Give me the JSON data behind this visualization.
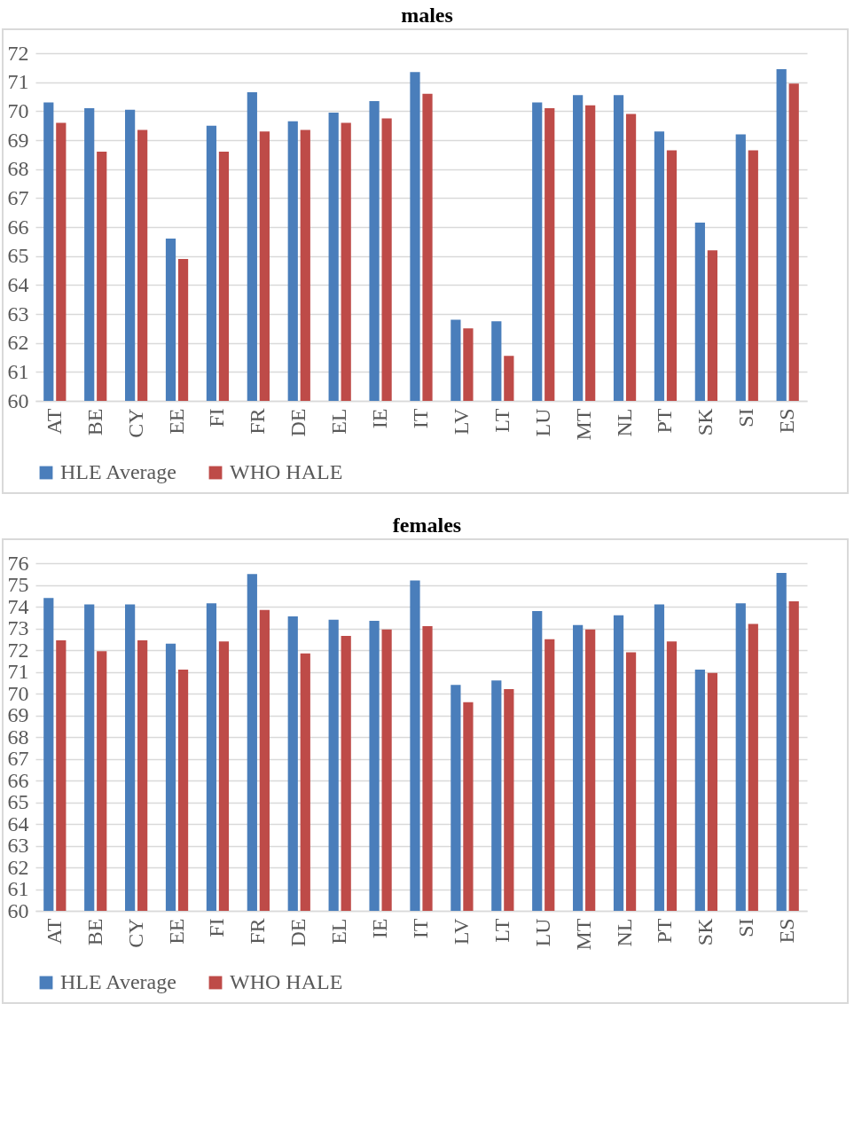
{
  "chart_data": [
    {
      "type": "bar",
      "title": "males",
      "categories": [
        "AT",
        "BE",
        "CY",
        "EE",
        "FI",
        "FR",
        "DE",
        "EL",
        "IE",
        "IT",
        "LV",
        "LT",
        "LU",
        "MT",
        "NL",
        "PT",
        "SK",
        "SI",
        "ES"
      ],
      "series": [
        {
          "name": "HLE Average",
          "color": "#4a7ebb",
          "values": [
            70.3,
            70.1,
            70.05,
            65.6,
            69.5,
            70.65,
            69.65,
            69.95,
            70.35,
            71.35,
            62.8,
            62.75,
            70.3,
            70.55,
            70.55,
            69.3,
            66.15,
            69.2,
            71.45
          ]
        },
        {
          "name": "WHO HALE",
          "color": "#be4b48",
          "values": [
            69.6,
            68.6,
            69.35,
            64.9,
            68.6,
            69.3,
            69.35,
            69.6,
            69.75,
            70.6,
            62.5,
            61.55,
            70.1,
            70.2,
            69.9,
            68.65,
            65.2,
            68.65,
            70.95
          ]
        }
      ],
      "ylim": [
        60,
        72
      ],
      "yticks": [
        60,
        61,
        62,
        63,
        64,
        65,
        66,
        67,
        68,
        69,
        70,
        71,
        72
      ],
      "grid": "y",
      "legend": "bottom"
    },
    {
      "type": "bar",
      "title": "females",
      "categories": [
        "AT",
        "BE",
        "CY",
        "EE",
        "FI",
        "FR",
        "DE",
        "EL",
        "IE",
        "IT",
        "LV",
        "LT",
        "LU",
        "MT",
        "NL",
        "PT",
        "SK",
        "SI",
        "ES"
      ],
      "series": [
        {
          "name": "HLE Average",
          "color": "#4a7ebb",
          "values": [
            74.4,
            74.1,
            74.1,
            72.3,
            74.15,
            75.5,
            73.55,
            73.4,
            73.35,
            75.2,
            70.4,
            70.6,
            73.8,
            73.15,
            73.6,
            74.1,
            71.1,
            74.15,
            75.55
          ]
        },
        {
          "name": "WHO HALE",
          "color": "#be4b48",
          "values": [
            72.45,
            71.95,
            72.45,
            71.1,
            72.4,
            73.85,
            71.85,
            72.65,
            72.95,
            73.1,
            69.6,
            70.2,
            72.5,
            72.95,
            71.9,
            72.4,
            70.95,
            73.2,
            74.25
          ]
        }
      ],
      "ylim": [
        60,
        76
      ],
      "yticks": [
        60,
        61,
        62,
        63,
        64,
        65,
        66,
        67,
        68,
        69,
        70,
        71,
        72,
        73,
        74,
        75,
        76
      ],
      "grid": "y",
      "legend": "bottom"
    }
  ]
}
